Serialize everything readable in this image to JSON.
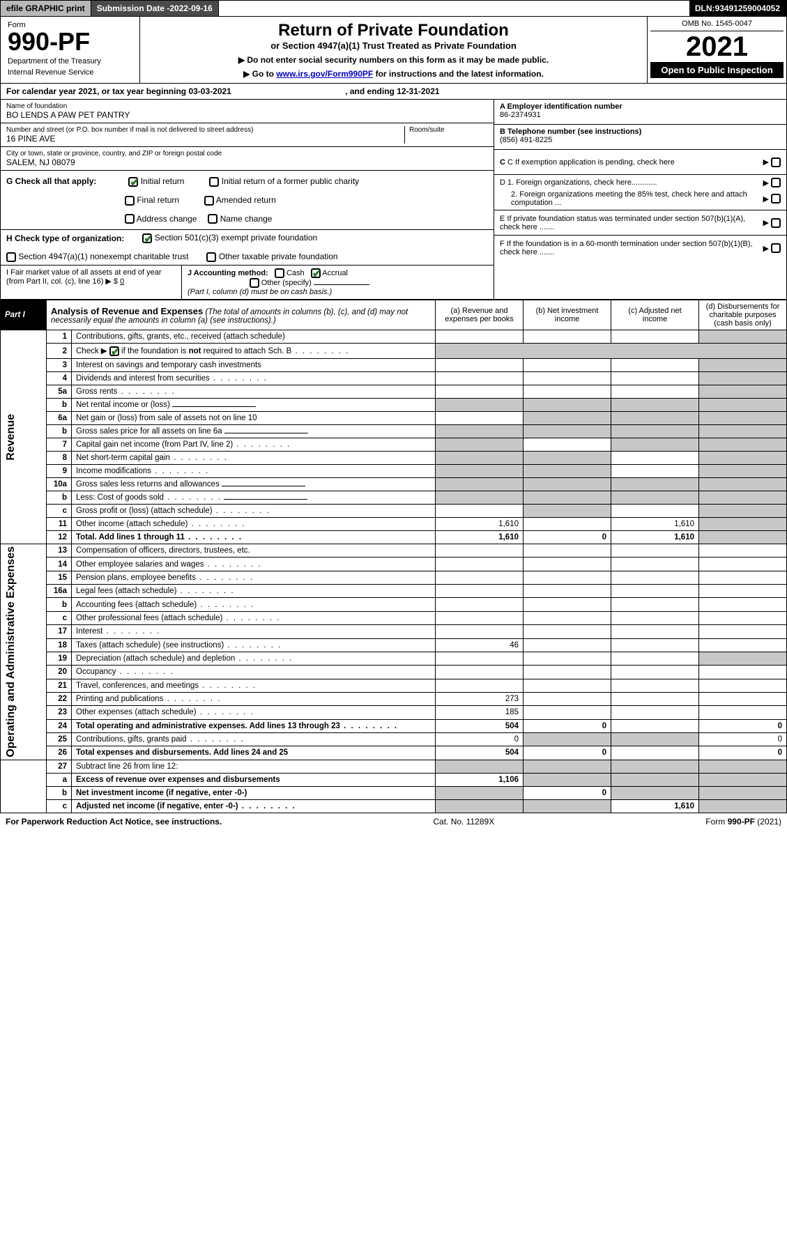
{
  "topbar": {
    "efile": "efile GRAPHIC print",
    "subdate_label": "Submission Date - ",
    "subdate": "2022-09-16",
    "dln_label": "DLN: ",
    "dln": "93491259004052"
  },
  "header": {
    "form_label": "Form",
    "form_num": "990-PF",
    "dept1": "Department of the Treasury",
    "dept2": "Internal Revenue Service",
    "title_main": "Return of Private Foundation",
    "title_sub": "or Section 4947(a)(1) Trust Treated as Private Foundation",
    "note1": "▶ Do not enter social security numbers on this form as it may be made public.",
    "note2_pre": "▶ Go to ",
    "note2_link": "www.irs.gov/Form990PF",
    "note2_post": " for instructions and the latest information.",
    "omb": "OMB No. 1545-0047",
    "year": "2021",
    "open_public": "Open to Public Inspection"
  },
  "calyear": {
    "pre": "For calendar year 2021, or tax year beginning ",
    "begin": "03-03-2021",
    "mid": " , and ending ",
    "end": "12-31-2021"
  },
  "info_left": {
    "name_label": "Name of foundation",
    "name": "BO LENDS A PAW PET PANTRY",
    "addr_label": "Number and street (or P.O. box number if mail is not delivered to street address)",
    "addr": "16 PINE AVE",
    "room_label": "Room/suite",
    "city_label": "City or town, state or province, country, and ZIP or foreign postal code",
    "city": "SALEM, NJ  08079"
  },
  "info_right": {
    "a_label": "A Employer identification number",
    "a_val": "86-2374931",
    "b_label": "B Telephone number (see instructions)",
    "b_val": "(856) 491-8225",
    "c_label": "C If exemption application is pending, check here",
    "d1": "D 1. Foreign organizations, check here............",
    "d2": "2. Foreign organizations meeting the 85% test, check here and attach computation ...",
    "e_label": "E  If private foundation status was terminated under section 507(b)(1)(A), check here .......",
    "f_label": "F  If the foundation is in a 60-month termination under section 507(b)(1)(B), check here ......."
  },
  "g": {
    "label": "G Check all that apply:",
    "opts": [
      "Initial return",
      "Initial return of a former public charity",
      "Final return",
      "Amended return",
      "Address change",
      "Name change"
    ],
    "checked": [
      true,
      false,
      false,
      false,
      false,
      false
    ]
  },
  "h": {
    "label": "H Check type of organization:",
    "opts": [
      "Section 501(c)(3) exempt private foundation",
      "Section 4947(a)(1) nonexempt charitable trust",
      "Other taxable private foundation"
    ],
    "checked": [
      true,
      false,
      false
    ]
  },
  "i": {
    "label": "I Fair market value of all assets at end of year (from Part II, col. (c), line 16) ▶ $",
    "val": "0"
  },
  "j": {
    "label": "J Accounting method:",
    "cash": "Cash",
    "accrual": "Accrual",
    "other": "Other (specify)",
    "note": "(Part I, column (d) must be on cash basis.)",
    "cash_checked": false,
    "accrual_checked": true
  },
  "part1": {
    "tag": "Part I",
    "title": "Analysis of Revenue and Expenses",
    "title_note": " (The total of amounts in columns (b), (c), and (d) may not necessarily equal the amounts in column (a) (see instructions).)",
    "cols": {
      "a": "(a) Revenue and expenses per books",
      "b": "(b) Net investment income",
      "c": "(c) Adjusted net income",
      "d": "(d) Disbursements for charitable purposes (cash basis only)"
    }
  },
  "side_labels": {
    "revenue": "Revenue",
    "expenses": "Operating and Administrative Expenses"
  },
  "rows": [
    {
      "n": "1",
      "desc": "Contributions, gifts, grants, etc., received (attach schedule)",
      "a": "",
      "b": "",
      "c": "",
      "d": "shade"
    },
    {
      "n": "2",
      "desc": "Check ▶ ☑ if the foundation is not required to attach Sch. B",
      "dots": true,
      "nocols": true
    },
    {
      "n": "3",
      "desc": "Interest on savings and temporary cash investments",
      "a": "",
      "b": "",
      "c": "",
      "d": "shade"
    },
    {
      "n": "4",
      "desc": "Dividends and interest from securities",
      "dots": true,
      "a": "",
      "b": "",
      "c": "",
      "d": "shade"
    },
    {
      "n": "5a",
      "desc": "Gross rents",
      "dots": true,
      "a": "",
      "b": "",
      "c": "",
      "d": "shade"
    },
    {
      "n": "b",
      "desc": "Net rental income or (loss)",
      "blank": true,
      "shadeall": true
    },
    {
      "n": "6a",
      "desc": "Net gain or (loss) from sale of assets not on line 10",
      "a": "",
      "b": "shade",
      "c": "shade",
      "d": "shade"
    },
    {
      "n": "b",
      "desc": "Gross sales price for all assets on line 6a",
      "blank": true,
      "shadeall": true
    },
    {
      "n": "7",
      "desc": "Capital gain net income (from Part IV, line 2)",
      "dots": true,
      "a": "shade",
      "b": "",
      "c": "shade",
      "d": "shade"
    },
    {
      "n": "8",
      "desc": "Net short-term capital gain",
      "dots": true,
      "a": "shade",
      "b": "shade",
      "c": "",
      "d": "shade"
    },
    {
      "n": "9",
      "desc": "Income modifications",
      "dots": true,
      "a": "shade",
      "b": "shade",
      "c": "",
      "d": "shade"
    },
    {
      "n": "10a",
      "desc": "Gross sales less returns and allowances",
      "blank": true,
      "shadeall": true
    },
    {
      "n": "b",
      "desc": "Less: Cost of goods sold",
      "dots": true,
      "blank": true,
      "shadeall": true
    },
    {
      "n": "c",
      "desc": "Gross profit or (loss) (attach schedule)",
      "dots": true,
      "a": "",
      "b": "shade",
      "c": "",
      "d": "shade"
    },
    {
      "n": "11",
      "desc": "Other income (attach schedule)",
      "dots": true,
      "a": "1,610",
      "b": "",
      "c": "1,610",
      "d": "shade"
    },
    {
      "n": "12",
      "desc": "Total. Add lines 1 through 11",
      "dots": true,
      "bold": true,
      "a": "1,610",
      "b": "0",
      "c": "1,610",
      "d": "shade"
    }
  ],
  "exp_rows": [
    {
      "n": "13",
      "desc": "Compensation of officers, directors, trustees, etc.",
      "a": "",
      "b": "",
      "c": "",
      "d": ""
    },
    {
      "n": "14",
      "desc": "Other employee salaries and wages",
      "dots": true,
      "a": "",
      "b": "",
      "c": "",
      "d": ""
    },
    {
      "n": "15",
      "desc": "Pension plans, employee benefits",
      "dots": true,
      "a": "",
      "b": "",
      "c": "",
      "d": ""
    },
    {
      "n": "16a",
      "desc": "Legal fees (attach schedule)",
      "dots": true,
      "a": "",
      "b": "",
      "c": "",
      "d": ""
    },
    {
      "n": "b",
      "desc": "Accounting fees (attach schedule)",
      "dots": true,
      "a": "",
      "b": "",
      "c": "",
      "d": ""
    },
    {
      "n": "c",
      "desc": "Other professional fees (attach schedule)",
      "dots": true,
      "a": "",
      "b": "",
      "c": "",
      "d": ""
    },
    {
      "n": "17",
      "desc": "Interest",
      "dots": true,
      "a": "",
      "b": "",
      "c": "",
      "d": ""
    },
    {
      "n": "18",
      "desc": "Taxes (attach schedule) (see instructions)",
      "dots": true,
      "a": "46",
      "b": "",
      "c": "",
      "d": ""
    },
    {
      "n": "19",
      "desc": "Depreciation (attach schedule) and depletion",
      "dots": true,
      "a": "",
      "b": "",
      "c": "",
      "d": "shade"
    },
    {
      "n": "20",
      "desc": "Occupancy",
      "dots": true,
      "a": "",
      "b": "",
      "c": "",
      "d": ""
    },
    {
      "n": "21",
      "desc": "Travel, conferences, and meetings",
      "dots": true,
      "a": "",
      "b": "",
      "c": "",
      "d": ""
    },
    {
      "n": "22",
      "desc": "Printing and publications",
      "dots": true,
      "a": "273",
      "b": "",
      "c": "",
      "d": ""
    },
    {
      "n": "23",
      "desc": "Other expenses (attach schedule)",
      "dots": true,
      "a": "185",
      "b": "",
      "c": "",
      "d": ""
    },
    {
      "n": "24",
      "desc": "Total operating and administrative expenses. Add lines 13 through 23",
      "dots": true,
      "bold": true,
      "a": "504",
      "b": "0",
      "c": "",
      "d": "0"
    },
    {
      "n": "25",
      "desc": "Contributions, gifts, grants paid",
      "dots": true,
      "a": "0",
      "b": "shade",
      "c": "shade",
      "d": "0"
    },
    {
      "n": "26",
      "desc": "Total expenses and disbursements. Add lines 24 and 25",
      "bold": true,
      "a": "504",
      "b": "0",
      "c": "",
      "d": "0"
    },
    {
      "n": "27",
      "desc": "Subtract line 26 from line 12:",
      "shadeall": true,
      "nogroup": true
    },
    {
      "n": "a",
      "desc": "Excess of revenue over expenses and disbursements",
      "bold": true,
      "a": "1,106",
      "b": "shade",
      "c": "shade",
      "d": "shade",
      "nogroup": true
    },
    {
      "n": "b",
      "desc": "Net investment income (if negative, enter -0-)",
      "bold": true,
      "a": "shade",
      "b": "0",
      "c": "shade",
      "d": "shade",
      "nogroup": true
    },
    {
      "n": "c",
      "desc": "Adjusted net income (if negative, enter -0-)",
      "dots": true,
      "bold": true,
      "a": "shade",
      "b": "shade",
      "c": "1,610",
      "d": "shade",
      "nogroup": true
    }
  ],
  "footer": {
    "left": "For Paperwork Reduction Act Notice, see instructions.",
    "mid": "Cat. No. 11289X",
    "right": "Form 990-PF (2021)"
  },
  "colors": {
    "shade": "#c8c8c8",
    "topbar_gray": "#b8b8b8",
    "topbar_dark": "#4a4a4a",
    "link": "#0000cc",
    "check_green": "#2a7a2a"
  }
}
